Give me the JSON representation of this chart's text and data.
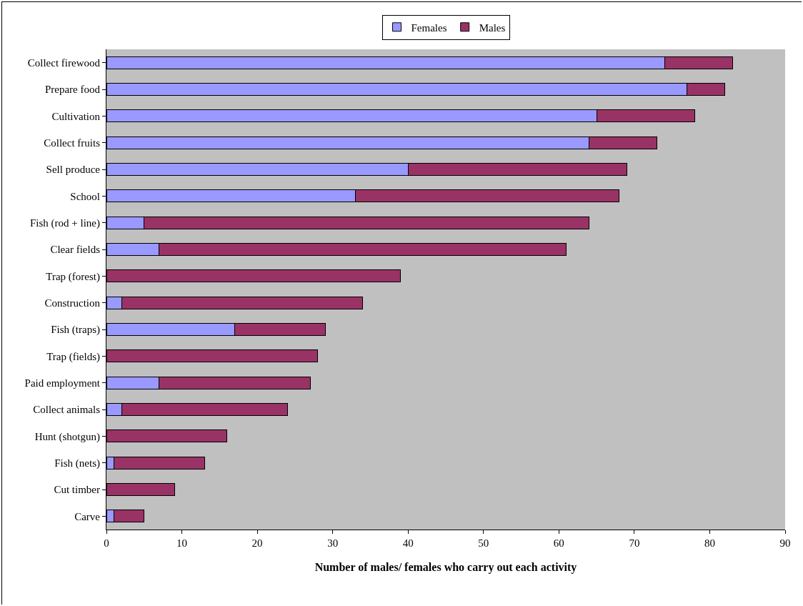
{
  "chart_data": {
    "type": "bar",
    "orientation": "horizontal",
    "stacked": true,
    "xlabel": "Number of males/ females who carry out each activity",
    "categories": [
      "Collect firewood",
      "Prepare food",
      "Cultivation",
      "Collect fruits",
      "Sell produce",
      "School",
      "Fish (rod + line)",
      "Clear fields",
      "Trap (forest)",
      "Construction",
      "Fish (traps)",
      "Trap (fields)",
      "Paid employment",
      "Collect animals",
      "Hunt (shotgun)",
      "Fish (nets)",
      "Cut timber",
      "Carve"
    ],
    "series": [
      {
        "name": "Females",
        "color": "#9999ff",
        "values": [
          74,
          77,
          65,
          64,
          40,
          33,
          5,
          7,
          0,
          2,
          17,
          0,
          7,
          2,
          0,
          1,
          0,
          1
        ]
      },
      {
        "name": "Males",
        "color": "#993366",
        "values": [
          9,
          5,
          13,
          9,
          29,
          35,
          59,
          54,
          39,
          32,
          12,
          28,
          20,
          22,
          16,
          12,
          9,
          4
        ]
      }
    ],
    "xlim": [
      0,
      90
    ],
    "xticks": [
      0,
      10,
      20,
      30,
      40,
      50,
      60,
      70,
      80,
      90
    ],
    "grid": false,
    "legend": "top"
  }
}
